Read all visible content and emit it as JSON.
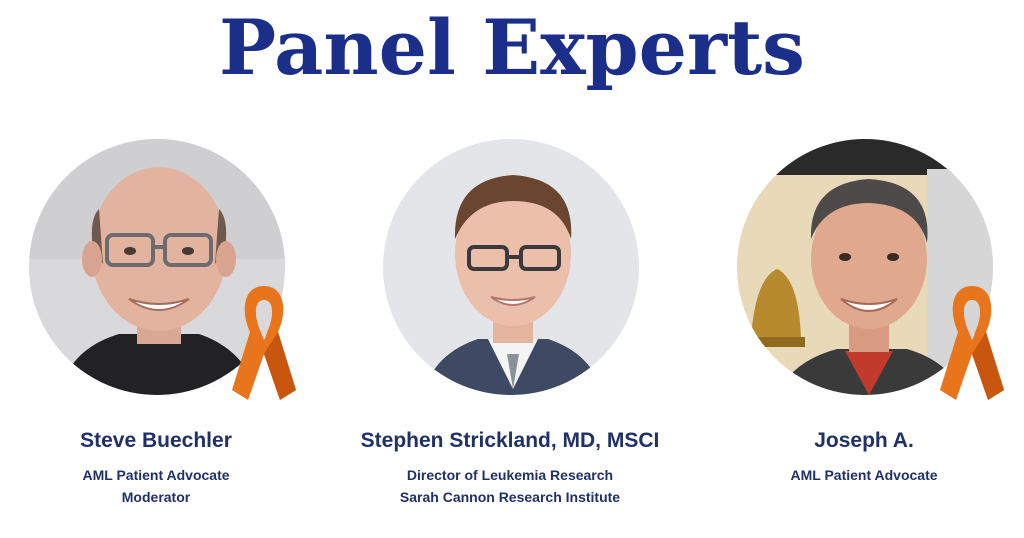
{
  "header": {
    "title": "Panel Experts"
  },
  "colors": {
    "title": "#1b2f8a",
    "name": "#1f3167",
    "role": "#1f3167",
    "ribbon": "#e8741c",
    "ribbon_shade": "#c8560f"
  },
  "experts": [
    {
      "name": "Steve Buechler",
      "lines": [
        "AML Patient Advocate",
        "Moderator"
      ],
      "photo_icon": "portrait-photo",
      "ribbon_icon": "awareness-ribbon-icon"
    },
    {
      "name": "Stephen Strickland, MD, MSCI",
      "lines": [
        "Director of Leukemia Research",
        "Sarah Cannon Research Institute"
      ],
      "photo_icon": "portrait-photo"
    },
    {
      "name": "Joseph A.",
      "lines": [
        "AML Patient Advocate"
      ],
      "photo_icon": "portrait-photo",
      "ribbon_icon": "awareness-ribbon-icon"
    }
  ]
}
